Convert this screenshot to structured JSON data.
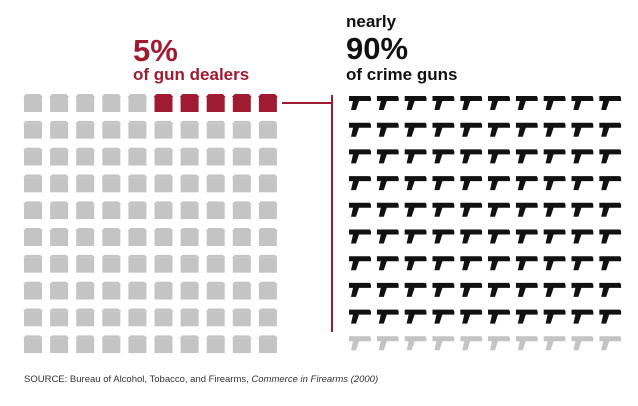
{
  "colors": {
    "highlight": "#9e1b32",
    "muted": "#c4c4c4",
    "dark": "#111111",
    "connector": "#9e1b32",
    "source_text": "#333333"
  },
  "icons": {
    "dealers": "storefront-icon",
    "guns": "handgun-icon"
  },
  "chart_data": [
    {
      "type": "pictogram",
      "name": "dealers",
      "headline": "5%",
      "label": "of gun dealers",
      "total_units": 100,
      "highlighted_units": 5,
      "value_percent": 5,
      "columns": 10,
      "rows": 10,
      "highlight_position": "top row, right half"
    },
    {
      "type": "pictogram",
      "name": "crime_guns",
      "prefix": "nearly",
      "headline": "90%",
      "label": "of crime guns",
      "total_units": 100,
      "highlighted_units": 90,
      "value_percent": 90,
      "columns": 10,
      "rows": 10,
      "highlight_position": "top nine rows"
    }
  ],
  "source": {
    "prefix": "SOURCE: Bureau of Alcohol, Tobacco, and Firearms, ",
    "publication": "Commerce in Firearms (2000)"
  }
}
